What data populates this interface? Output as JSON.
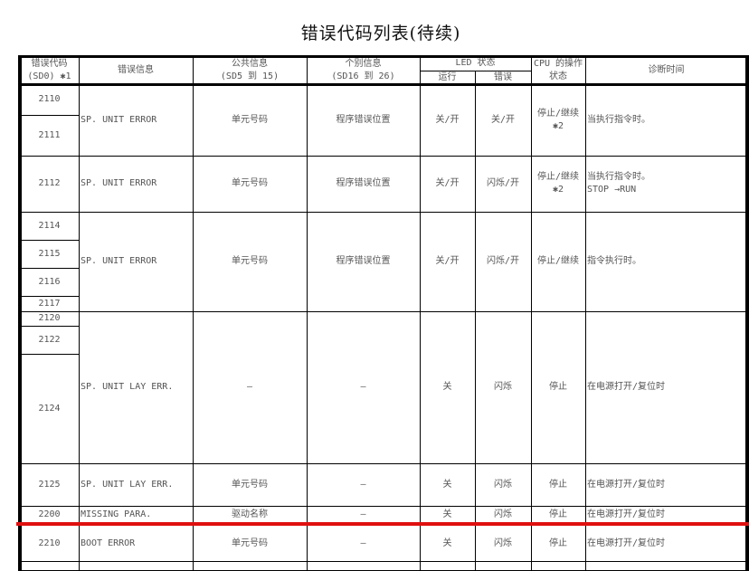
{
  "title": "错误代码列表(待续)",
  "header": {
    "code": "错误代码\n(SD0) ✱1",
    "message": "错误信息",
    "common": "公共信息\n(SD5 到 15)",
    "individual": "个别信息\n(SD16 到 26)",
    "led": "LED 状态",
    "led_run": "运行",
    "led_error": "错误",
    "cpu": "CPU 的操作\n状态",
    "diagnosis": "诊断时间"
  },
  "rows": [
    {
      "codes": [
        "2110",
        "2111"
      ],
      "message": "SP. UNIT ERROR",
      "common": "单元号码",
      "individual": "程序错误位置",
      "run": "关/开",
      "error": "关/开",
      "cpu": "停止/继续\n✱2",
      "diagnosis": "当执行指令时。"
    },
    {
      "codes": [
        "2112"
      ],
      "message": "SP. UNIT ERROR",
      "common": "单元号码",
      "individual": "程序错误位置",
      "run": "关/开",
      "error": "闪烁/开",
      "cpu": "停止/继续\n✱2",
      "diagnosis": "当执行指令时。\nSTOP →RUN"
    },
    {
      "codes": [
        "2114",
        "2115",
        "2116",
        "2117"
      ],
      "message": "SP. UNIT ERROR",
      "common": "单元号码",
      "individual": "程序错误位置",
      "run": "关/开",
      "error": "闪烁/开",
      "cpu": "停止/继续",
      "diagnosis": "指令执行时。"
    },
    {
      "codes": [
        "2120",
        "2122",
        "2124"
      ],
      "message": "SP. UNIT LAY ERR.",
      "common": "—",
      "individual": "—",
      "run": "关",
      "error": "闪烁",
      "cpu": "停止",
      "diagnosis": "在电源打开/复位时"
    },
    {
      "codes": [
        "2125"
      ],
      "message": "SP. UNIT LAY ERR.",
      "common": "单元号码",
      "individual": "—",
      "run": "关",
      "error": "闪烁",
      "cpu": "停止",
      "diagnosis": "在电源打开/复位时"
    },
    {
      "codes": [
        "2200"
      ],
      "message": "MISSING PARA.",
      "common": "驱动名称",
      "individual": "—",
      "run": "关",
      "error": "闪烁",
      "cpu": "停止",
      "diagnosis": "在电源打开/复位时"
    },
    {
      "codes": [
        "2210"
      ],
      "message": "BOOT ERROR",
      "common": "单元号码",
      "individual": "—",
      "run": "关",
      "error": "闪烁",
      "cpu": "停止",
      "diagnosis": "在电源打开/复位时"
    }
  ],
  "colors": {
    "highlight_line": "#e01010",
    "border": "#000000",
    "text": "#555555"
  }
}
